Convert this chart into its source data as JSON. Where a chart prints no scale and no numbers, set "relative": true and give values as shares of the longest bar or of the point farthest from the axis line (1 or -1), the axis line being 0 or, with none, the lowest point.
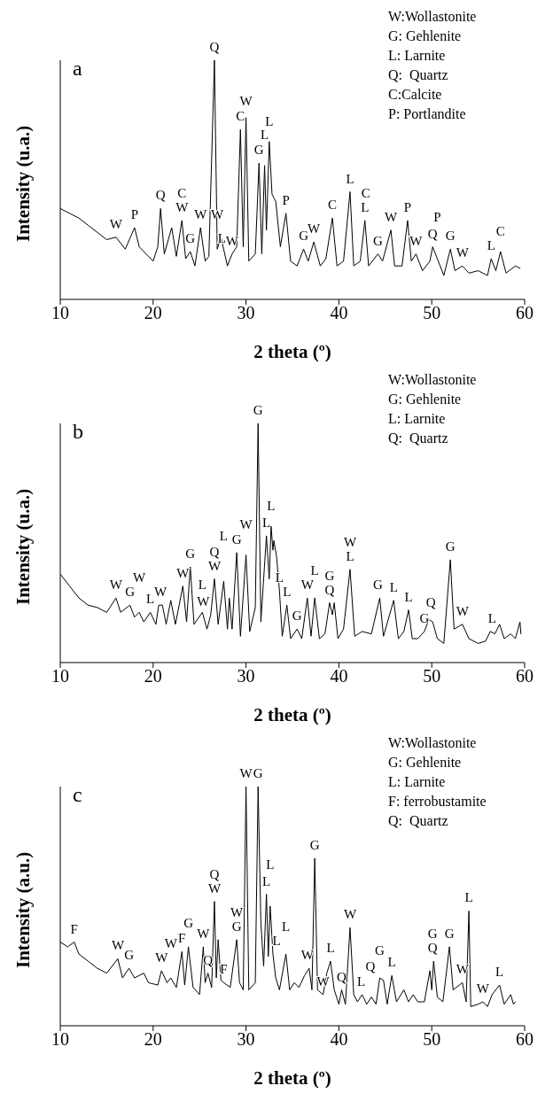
{
  "chart_data": [
    {
      "type": "line",
      "title": "a",
      "xlabel": "2 theta (º)",
      "ylabel": "Intensity (u.a.)",
      "relative": true,
      "xlim": [
        10,
        60
      ],
      "xticks": [
        10,
        20,
        30,
        40,
        50,
        60
      ],
      "marker": "none",
      "color": "#000000",
      "x": [
        10,
        11,
        12,
        13,
        14,
        15,
        16,
        17,
        18,
        18.5,
        19,
        20,
        20.5,
        20.8,
        21.2,
        22,
        22.5,
        23.1,
        23.5,
        24,
        24.5,
        25.1,
        25.6,
        26,
        26.6,
        26.9,
        27.3,
        28,
        28.5,
        29,
        29.4,
        29.7,
        30,
        30.3,
        31,
        31.4,
        31.7,
        32,
        32.2,
        32.5,
        32.8,
        33.2,
        33.7,
        34.3,
        34.8,
        35.5,
        36.2,
        36.7,
        37.3,
        38,
        38.6,
        39.3,
        39.8,
        40.5,
        41.2,
        41.6,
        42.3,
        42.8,
        43.2,
        44.2,
        44.7,
        45.6,
        46,
        46.8,
        47.4,
        47.8,
        48.3,
        49,
        49.8,
        50.1,
        50.6,
        51.3,
        52,
        52.5,
        53.3,
        54,
        55,
        56,
        56.4,
        56.9,
        57.4,
        58,
        59,
        59.5
      ],
      "values": [
        0.38,
        0.36,
        0.34,
        0.31,
        0.28,
        0.25,
        0.26,
        0.21,
        0.3,
        0.22,
        0.2,
        0.16,
        0.22,
        0.38,
        0.19,
        0.3,
        0.18,
        0.33,
        0.17,
        0.2,
        0.14,
        0.3,
        0.16,
        0.18,
        1,
        0.21,
        0.26,
        0.14,
        0.19,
        0.22,
        0.71,
        0.22,
        0.76,
        0.16,
        0.19,
        0.57,
        0.19,
        0.56,
        0.29,
        0.66,
        0.44,
        0.41,
        0.22,
        0.36,
        0.16,
        0.14,
        0.21,
        0.16,
        0.24,
        0.14,
        0.17,
        0.34,
        0.14,
        0.16,
        0.45,
        0.14,
        0.16,
        0.33,
        0.14,
        0.19,
        0.16,
        0.29,
        0.14,
        0.14,
        0.33,
        0.16,
        0.19,
        0.12,
        0.16,
        0.22,
        0.17,
        0.1,
        0.21,
        0.12,
        0.14,
        0.11,
        0.12,
        0.1,
        0.17,
        0.12,
        0.2,
        0.11,
        0.14,
        0.13
      ],
      "annotations": [
        "W:Wollastonite",
        "G: Gehlenite",
        "L: Larnite",
        "Q:  Quartz",
        "C:Calcite",
        "P: Portlandite",
        {
          "text": "Q",
          "x": 26.6,
          "y": 1
        },
        {
          "text": "W",
          "x": 16,
          "y": 0.26
        },
        {
          "text": "P",
          "x": 18,
          "y": 0.3
        },
        {
          "text": "Q",
          "x": 20.8,
          "y": 0.38
        },
        {
          "text": "W",
          "x": 23.1,
          "y": 0.33
        },
        {
          "text": "C",
          "x": 23.1,
          "y": 0.33
        },
        {
          "text": "G",
          "x": 24,
          "y": 0.2
        },
        {
          "text": "W",
          "x": 25.1,
          "y": 0.3
        },
        {
          "text": "W",
          "x": 26.9,
          "y": 0.3
        },
        {
          "text": "L",
          "x": 27.4,
          "y": 0.2
        },
        {
          "text": "W",
          "x": 28.5,
          "y": 0.19
        },
        {
          "text": "C",
          "x": 29.4,
          "y": 0.71
        },
        {
          "text": "W",
          "x": 30,
          "y": 0.76
        },
        {
          "text": "G",
          "x": 31.4,
          "y": 0.57
        },
        {
          "text": "L",
          "x": 32,
          "y": 0.56
        },
        {
          "text": "L",
          "x": 32.5,
          "y": 0.66
        },
        {
          "text": "P",
          "x": 34.3,
          "y": 0.36
        },
        {
          "text": "G",
          "x": 36.2,
          "y": 0.21
        },
        {
          "text": "W",
          "x": 37.3,
          "y": 0.24
        },
        {
          "text": "C",
          "x": 39.3,
          "y": 0.34
        },
        {
          "text": "L",
          "x": 41.2,
          "y": 0.45
        },
        {
          "text": "L",
          "x": 42.8,
          "y": 0.33
        },
        {
          "text": "C",
          "x": 42.9,
          "y": 0.33
        },
        {
          "text": "G",
          "x": 44.2,
          "y": 0.19
        },
        {
          "text": "W",
          "x": 45.6,
          "y": 0.29
        },
        {
          "text": "P",
          "x": 47.4,
          "y": 0.33
        },
        {
          "text": "W",
          "x": 48.3,
          "y": 0.19
        },
        {
          "text": "Q",
          "x": 50.1,
          "y": 0.22
        },
        {
          "text": "P",
          "x": 50.6,
          "y": 0.17
        },
        {
          "text": "G",
          "x": 52,
          "y": 0.21
        },
        {
          "text": "W",
          "x": 53.3,
          "y": 0.14
        },
        {
          "text": "L",
          "x": 56.4,
          "y": 0.17
        },
        {
          "text": "C",
          "x": 57.4,
          "y": 0.2
        }
      ]
    },
    {
      "type": "line",
      "title": "b",
      "xlabel": "2 theta (º)",
      "ylabel": "Intensity (u.a.)",
      "relative": true,
      "xlim": [
        10,
        60
      ],
      "xticks": [
        10,
        20,
        30,
        40,
        50,
        60
      ],
      "marker": "none",
      "color": "#000000",
      "x": [
        10,
        11,
        12,
        13,
        14,
        15,
        16,
        16.5,
        17.5,
        18,
        18.5,
        19,
        19.7,
        20.3,
        20.6,
        21,
        21.4,
        21.9,
        22.4,
        23.2,
        23.6,
        24,
        24.4,
        25.3,
        25.8,
        26.2,
        26.6,
        27,
        27.6,
        28,
        28.2,
        28.5,
        29,
        29.4,
        30,
        30.4,
        31,
        31.3,
        31.6,
        32.2,
        32.5,
        32.7,
        32.9,
        33,
        33.3,
        33.6,
        33.9,
        34.4,
        34.8,
        35.5,
        36,
        36.6,
        37,
        37.4,
        37.9,
        38.5,
        39,
        39.3,
        39.5,
        39.9,
        40.5,
        41.2,
        41.7,
        42.5,
        43.5,
        44.4,
        44.8,
        45.9,
        46.4,
        47,
        47.5,
        47.9,
        48.5,
        49.2,
        49.7,
        50.1,
        50.6,
        51.3,
        52,
        52.4,
        53.3,
        54,
        55,
        55.8,
        56.3,
        56.8,
        57.3,
        57.8,
        58.5,
        59,
        59.5,
        59.6
      ],
      "values": [
        0.37,
        0.32,
        0.27,
        0.24,
        0.23,
        0.21,
        0.27,
        0.21,
        0.24,
        0.19,
        0.21,
        0.17,
        0.21,
        0.16,
        0.24,
        0.24,
        0.16,
        0.26,
        0.16,
        0.32,
        0.17,
        0.4,
        0.16,
        0.21,
        0.14,
        0.2,
        0.35,
        0.16,
        0.34,
        0.14,
        0.27,
        0.14,
        0.46,
        0.11,
        0.45,
        0.13,
        0.23,
        1,
        0.17,
        0.53,
        0.35,
        0.57,
        0.47,
        0.51,
        0.44,
        0.3,
        0.11,
        0.24,
        0.1,
        0.14,
        0.1,
        0.27,
        0.11,
        0.27,
        0.1,
        0.12,
        0.25,
        0.2,
        0.25,
        0.1,
        0.14,
        0.39,
        0.11,
        0.13,
        0.12,
        0.27,
        0.11,
        0.26,
        0.1,
        0.13,
        0.22,
        0.1,
        0.1,
        0.13,
        0.18,
        0.17,
        0.1,
        0.08,
        0.43,
        0.14,
        0.16,
        0.1,
        0.08,
        0.09,
        0.13,
        0.12,
        0.16,
        0.1,
        0.12,
        0.1,
        0.17,
        0.12
      ],
      "annotations": [
        "W:Wollastonite",
        "G: Gehlenite",
        "L: Larnite",
        "Q:  Quartz",
        {
          "text": "G",
          "x": 31.3,
          "y": 1
        },
        {
          "text": "W",
          "x": 16,
          "y": 0.27
        },
        {
          "text": "G",
          "x": 17.5,
          "y": 0.24
        },
        {
          "text": "W",
          "x": 18.5,
          "y": 0.21
        },
        {
          "text": "L",
          "x": 19.7,
          "y": 0.21
        },
        {
          "text": "W",
          "x": 20.8,
          "y": 0.24
        },
        {
          "text": "W",
          "x": 23.2,
          "y": 0.32
        },
        {
          "text": "G",
          "x": 24,
          "y": 0.4
        },
        {
          "text": "W",
          "x": 25.4,
          "y": 0.2
        },
        {
          "text": "L",
          "x": 25.3,
          "y": 0.21
        },
        {
          "text": "W",
          "x": 26.6,
          "y": 0.35
        },
        {
          "text": "Q",
          "x": 26.6,
          "y": 0.35
        },
        {
          "text": "L",
          "x": 27.6,
          "y": 0.34
        },
        {
          "text": "G",
          "x": 29,
          "y": 0.46
        },
        {
          "text": "W",
          "x": 30,
          "y": 0.45
        },
        {
          "text": "L",
          "x": 32.2,
          "y": 0.53
        },
        {
          "text": "L",
          "x": 32.7,
          "y": 0.57
        },
        {
          "text": "L",
          "x": 33.6,
          "y": 0.3
        },
        {
          "text": "L",
          "x": 34.4,
          "y": 0.24
        },
        {
          "text": "G",
          "x": 35.5,
          "y": 0.14
        },
        {
          "text": "W",
          "x": 36.6,
          "y": 0.27
        },
        {
          "text": "L",
          "x": 37.4,
          "y": 0.27
        },
        {
          "text": "Q",
          "x": 39,
          "y": 0.25
        },
        {
          "text": "G",
          "x": 39,
          "y": 0.25
        },
        {
          "text": "L",
          "x": 41.2,
          "y": 0.39
        },
        {
          "text": "W",
          "x": 41.2,
          "y": 0.39
        },
        {
          "text": "G",
          "x": 44.2,
          "y": 0.27
        },
        {
          "text": "L",
          "x": 45.9,
          "y": 0.26
        },
        {
          "text": "L",
          "x": 47.5,
          "y": 0.22
        },
        {
          "text": "G",
          "x": 49.2,
          "y": 0.13
        },
        {
          "text": "Q",
          "x": 49.9,
          "y": 0.18
        },
        {
          "text": "G",
          "x": 52,
          "y": 0.43
        },
        {
          "text": "W",
          "x": 53.3,
          "y": 0.16
        },
        {
          "text": "L",
          "x": 56.5,
          "y": 0.13
        }
      ]
    },
    {
      "type": "line",
      "title": "c",
      "xlabel": "2 theta (º)",
      "ylabel": "Intensity (a.u.)",
      "relative": true,
      "xlim": [
        10,
        60
      ],
      "xticks": [
        10,
        20,
        30,
        40,
        50,
        60
      ],
      "marker": "none",
      "color": "#000000",
      "x": [
        10,
        10.8,
        11.5,
        12,
        13,
        14,
        15,
        16.2,
        16.7,
        17.4,
        18,
        19,
        19.5,
        20.5,
        20.9,
        21.5,
        21.9,
        22.5,
        23.1,
        23.4,
        23.8,
        24.3,
        25,
        25.4,
        25.6,
        25.9,
        26.3,
        26.6,
        26.8,
        27,
        27.3,
        27.6,
        28.3,
        29,
        29.3,
        29.7,
        30,
        30.3,
        31,
        31.3,
        31.6,
        31.9,
        32.2,
        32.4,
        32.6,
        32.9,
        33.2,
        33.6,
        34.3,
        34.7,
        35.2,
        35.7,
        36.3,
        36.8,
        37.1,
        37.4,
        37.7,
        38.3,
        38.7,
        39.1,
        39.5,
        40,
        40.3,
        40.7,
        41.2,
        41.6,
        42,
        42.5,
        43,
        43.5,
        44,
        44.4,
        44.8,
        45.2,
        45.7,
        46.2,
        47,
        47.5,
        48,
        48.5,
        49.2,
        49.8,
        50,
        50.2,
        50.6,
        51.2,
        51.9,
        52.3,
        53.3,
        53.7,
        54,
        54.2,
        55,
        55.5,
        56,
        56.5,
        57.3,
        57.8,
        58.5,
        58.8,
        59
      ],
      "values": [
        0.35,
        0.33,
        0.35,
        0.3,
        0.27,
        0.24,
        0.22,
        0.28,
        0.2,
        0.24,
        0.2,
        0.22,
        0.18,
        0.17,
        0.23,
        0.18,
        0.2,
        0.16,
        0.31,
        0.17,
        0.33,
        0.16,
        0.13,
        0.33,
        0.18,
        0.22,
        0.16,
        0.52,
        0.2,
        0.36,
        0.19,
        0.18,
        0.16,
        0.36,
        0.18,
        0.15,
        1,
        0.15,
        0.18,
        1,
        0.43,
        0.25,
        0.55,
        0.29,
        0.5,
        0.3,
        0.2,
        0.15,
        0.3,
        0.15,
        0.18,
        0.16,
        0.21,
        0.24,
        0.15,
        0.7,
        0.15,
        0.13,
        0.22,
        0.27,
        0.15,
        0.09,
        0.15,
        0.09,
        0.41,
        0.13,
        0.1,
        0.13,
        0.09,
        0.12,
        0.09,
        0.2,
        0.19,
        0.09,
        0.21,
        0.1,
        0.15,
        0.1,
        0.13,
        0.1,
        0.1,
        0.23,
        0.15,
        0.27,
        0.12,
        0.1,
        0.33,
        0.15,
        0.18,
        0.1,
        0.48,
        0.08,
        0.09,
        0.1,
        0.08,
        0.13,
        0.17,
        0.09,
        0.13,
        0.09,
        0.1
      ],
      "annotations": [
        "W:Wollastonite",
        "G: Gehlenite",
        "L: Larnite",
        "F: ferrobustamite",
        "Q:  Quartz",
        {
          "text": "W",
          "x": 30,
          "y": 1
        },
        {
          "text": "G",
          "x": 31.3,
          "y": 1
        },
        {
          "text": "F",
          "x": 11.5,
          "y": 0.35
        },
        {
          "text": "W",
          "x": 16.2,
          "y": 0.28
        },
        {
          "text": "G",
          "x": 17.4,
          "y": 0.24
        },
        {
          "text": "W",
          "x": 20.9,
          "y": 0.23
        },
        {
          "text": "W",
          "x": 21.9,
          "y": 0.2
        },
        {
          "text": "F",
          "x": 23.1,
          "y": 0.31
        },
        {
          "text": "G",
          "x": 23.8,
          "y": 0.33
        },
        {
          "text": "W",
          "x": 25.4,
          "y": 0.33
        },
        {
          "text": "Q",
          "x": 25.9,
          "y": 0.22
        },
        {
          "text": "W",
          "x": 26.6,
          "y": 0.52
        },
        {
          "text": "Q",
          "x": 26.6,
          "y": 0.52
        },
        {
          "text": "F",
          "x": 27.6,
          "y": 0.18
        },
        {
          "text": "G",
          "x": 29,
          "y": 0.36
        },
        {
          "text": "W",
          "x": 29,
          "y": 0.36
        },
        {
          "text": "L",
          "x": 32.2,
          "y": 0.55
        },
        {
          "text": "L",
          "x": 32.6,
          "y": 0.5
        },
        {
          "text": "L",
          "x": 33.3,
          "y": 0.3
        },
        {
          "text": "L",
          "x": 34.3,
          "y": 0.3
        },
        {
          "text": "W",
          "x": 36.6,
          "y": 0.24
        },
        {
          "text": "G",
          "x": 37.4,
          "y": 0.7
        },
        {
          "text": "W",
          "x": 38.3,
          "y": 0.13
        },
        {
          "text": "L",
          "x": 39.1,
          "y": 0.27
        },
        {
          "text": "Q",
          "x": 40.3,
          "y": 0.15
        },
        {
          "text": "W",
          "x": 41.2,
          "y": 0.41
        },
        {
          "text": "L",
          "x": 42.4,
          "y": 0.13
        },
        {
          "text": "Q",
          "x": 43.4,
          "y": 0.12
        },
        {
          "text": "G",
          "x": 44.4,
          "y": 0.2
        },
        {
          "text": "L",
          "x": 45.7,
          "y": 0.21
        },
        {
          "text": "Q",
          "x": 50.1,
          "y": 0.27
        },
        {
          "text": "G",
          "x": 50.1,
          "y": 0.27
        },
        {
          "text": "G",
          "x": 51.9,
          "y": 0.33
        },
        {
          "text": "W",
          "x": 53.3,
          "y": 0.18
        },
        {
          "text": "L",
          "x": 54,
          "y": 0.48
        },
        {
          "text": "W",
          "x": 55.5,
          "y": 0.1
        },
        {
          "text": "L",
          "x": 57.3,
          "y": 0.17
        }
      ]
    }
  ]
}
